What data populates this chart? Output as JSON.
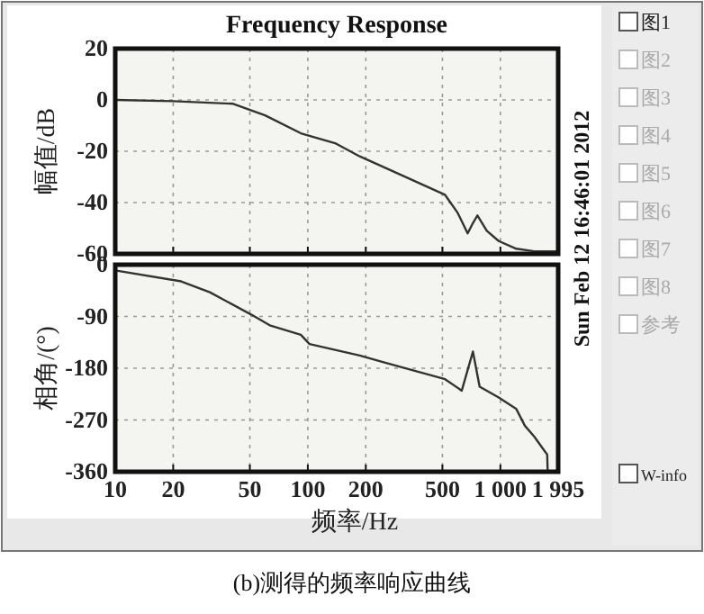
{
  "chart_data": [
    {
      "type": "line",
      "title": "Frequency Response",
      "ylabel": "幅值/dB",
      "log": "x",
      "tick_labels": "y",
      "grid": true,
      "marker": "none",
      "line_style": "solid",
      "xlim": [
        10,
        1995
      ],
      "xticks": [
        {
          "value": 10,
          "label": null
        },
        {
          "value": 20,
          "label": null
        },
        {
          "value": 50,
          "label": null
        },
        {
          "value": 100,
          "label": null
        },
        {
          "value": 200,
          "label": null
        },
        {
          "value": 500,
          "label": null
        },
        {
          "value": 1000,
          "label": null
        },
        {
          "value": 1995,
          "label": null
        }
      ],
      "ylim": [
        -60,
        20
      ],
      "yticks": [
        -60,
        -40,
        -20,
        0,
        20
      ],
      "annotations": [
        "Sun Feb 12 16:46:01 2012"
      ],
      "series": [
        {
          "color": "#333333",
          "x": [
            10,
            20,
            41,
            60,
            92,
            140,
            186,
            300,
            516,
            600,
            676,
            720,
            760,
            850,
            980,
            1210,
            1500,
            1780,
            1995
          ],
          "values": [
            0,
            -0.5,
            -1.5,
            -6,
            -13,
            -17,
            -22,
            -29,
            -37,
            -44,
            -52,
            -48,
            -45,
            -51,
            -55,
            -58,
            -59,
            -59,
            -59
          ]
        }
      ]
    },
    {
      "type": "line",
      "ylabel": "相角/(°)",
      "xlabel": "频率/Hz",
      "log": "x",
      "grid": true,
      "marker": "none",
      "line_style": "solid",
      "xlim": [
        10,
        1995
      ],
      "xticks": [
        10,
        20,
        50,
        100,
        200,
        500,
        {
          "value": 1000,
          "label": "1 000"
        },
        {
          "value": 1995,
          "label": "1 995"
        }
      ],
      "ylim": [
        -360,
        0
      ],
      "yticks": [
        -360,
        -270,
        -180,
        -90,
        0
      ],
      "annotations": [
        "(b)测得的频率响应曲线"
      ],
      "series": [
        {
          "color": "#333333",
          "x": [
            10,
            22,
            31,
            51,
            64,
            92,
            102,
            186,
            250,
            516,
            630,
            720,
            780,
            980,
            1210,
            1340,
            1500,
            1680,
            1750,
            1760
          ],
          "values": [
            -10,
            -29,
            -48,
            -87,
            -106,
            -122,
            -138,
            -158,
            -170,
            -199,
            -219,
            -151,
            -212,
            -231,
            -251,
            -280,
            -299,
            -322,
            -330,
            -360
          ]
        }
      ]
    },
    {
      "type": "other",
      "annotations": [
        "图1",
        "图2",
        "图3",
        "图4",
        "图5",
        "图6",
        "图7",
        "图8",
        "参考",
        "W-info"
      ]
    }
  ]
}
